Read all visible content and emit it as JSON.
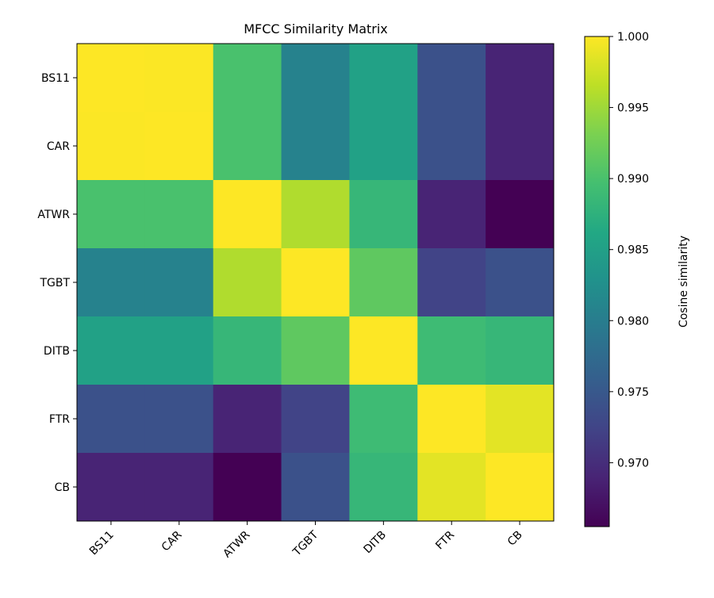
{
  "chart_data": {
    "type": "heatmap",
    "title": "MFCC Similarity Matrix",
    "x_labels": [
      "BS11",
      "CAR",
      "ATWR",
      "TGBT",
      "DITB",
      "FTR",
      "CB"
    ],
    "y_labels": [
      "BS11",
      "CAR",
      "ATWR",
      "TGBT",
      "DITB",
      "FTR",
      "CB"
    ],
    "values": [
      [
        1.0,
        0.9999,
        0.99,
        0.9807,
        0.9852,
        0.9741,
        0.969
      ],
      [
        0.9999,
        1.0,
        0.99,
        0.9807,
        0.9852,
        0.9741,
        0.969
      ],
      [
        0.99,
        0.99,
        1.0,
        0.9959,
        0.9883,
        0.969,
        0.9655
      ],
      [
        0.9807,
        0.9807,
        0.9959,
        1.0,
        0.9914,
        0.9724,
        0.9741
      ],
      [
        0.9852,
        0.9852,
        0.9883,
        0.9914,
        1.0,
        0.989,
        0.9883
      ],
      [
        0.9741,
        0.9741,
        0.969,
        0.9724,
        0.989,
        1.0,
        0.9986
      ],
      [
        0.969,
        0.969,
        0.9655,
        0.9741,
        0.9883,
        0.9986,
        1.0
      ]
    ],
    "colormap": "viridis",
    "vmin": 0.9655,
    "vmax": 1.0,
    "colorbar": {
      "label": "Cosine similarity",
      "ticks": [
        0.97,
        0.975,
        0.98,
        0.985,
        0.99,
        0.995,
        1.0
      ],
      "tick_labels": [
        "0.970",
        "0.975",
        "0.980",
        "0.985",
        "0.990",
        "0.995",
        "1.000"
      ]
    },
    "grid": false
  }
}
